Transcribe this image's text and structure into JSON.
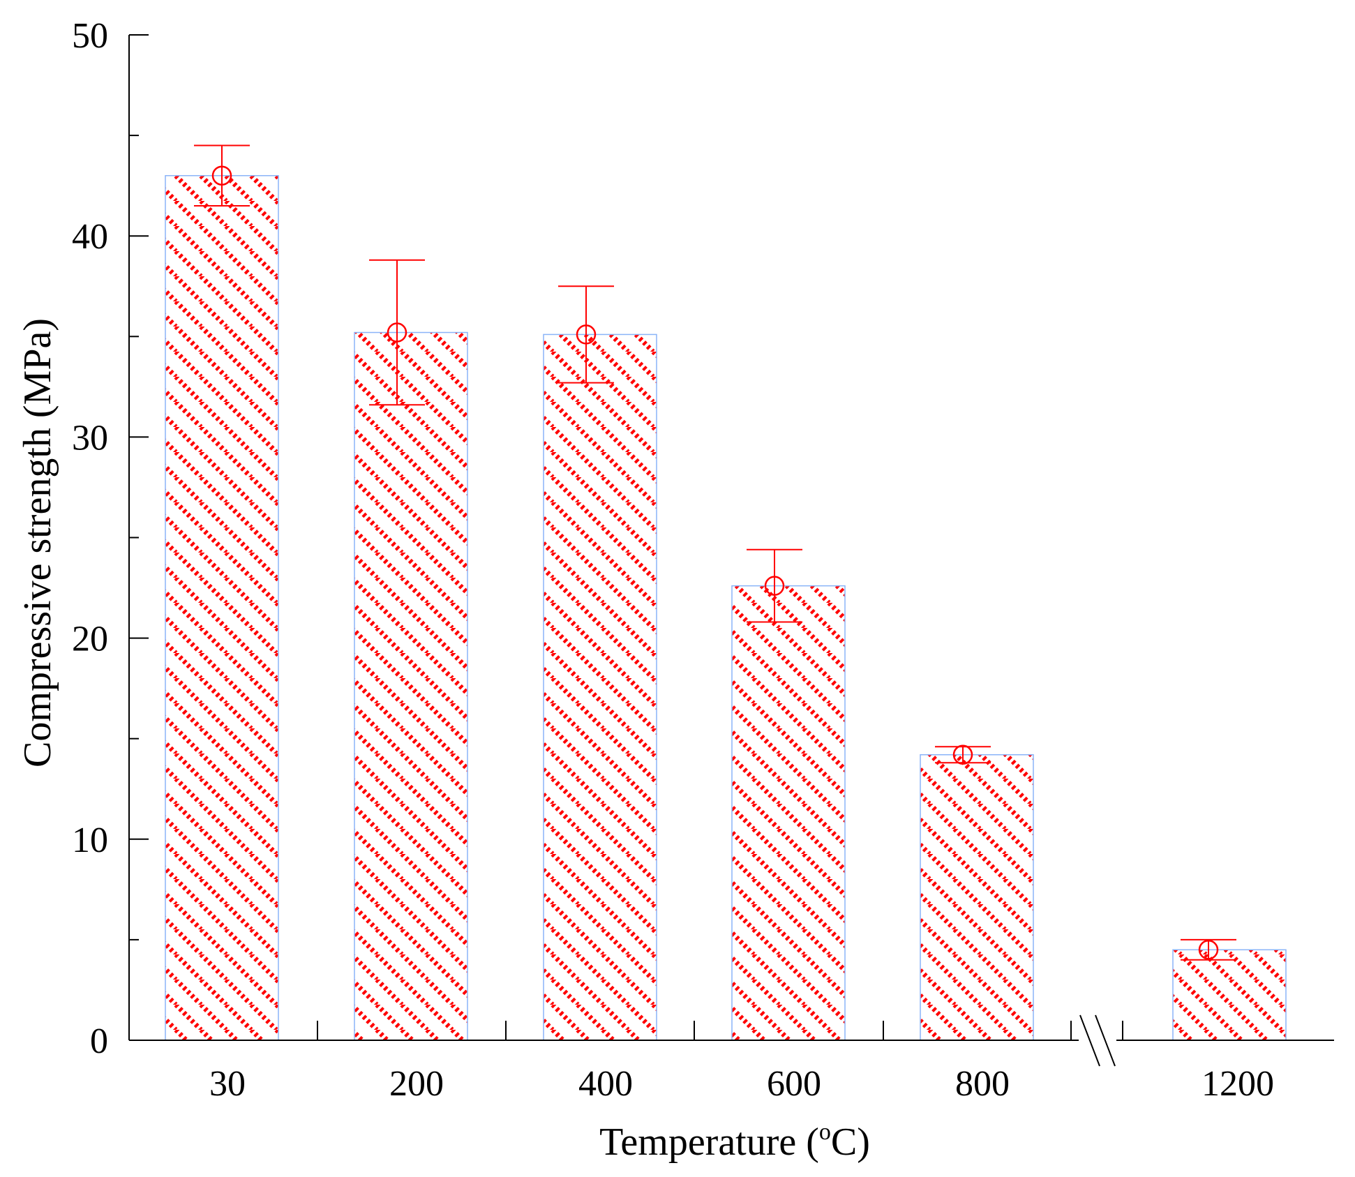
{
  "chart_data": {
    "type": "bar",
    "categories": [
      "30",
      "200",
      "400",
      "600",
      "800",
      "1200"
    ],
    "values": [
      43.0,
      35.2,
      35.1,
      22.6,
      14.2,
      4.5
    ],
    "error_upper": [
      44.5,
      38.8,
      37.5,
      24.4,
      14.6,
      5.0
    ],
    "error_lower": [
      41.5,
      31.6,
      32.7,
      20.8,
      13.8,
      4.0
    ],
    "xlabel": "Temperature (",
    "xlabel_superscript": "o",
    "xlabel_suffix": "C)",
    "ylabel": "Compressive strength (MPa)",
    "ylim": [
      0,
      50
    ],
    "yticks": [
      "0",
      "10",
      "20",
      "30",
      "40",
      "50"
    ],
    "axis_break_between": [
      "800",
      "1200"
    ],
    "colors": {
      "hatch": "#ff0000",
      "bar_outline": "#8ab4f8",
      "error": "#ff0000",
      "axis": "#000000"
    }
  }
}
